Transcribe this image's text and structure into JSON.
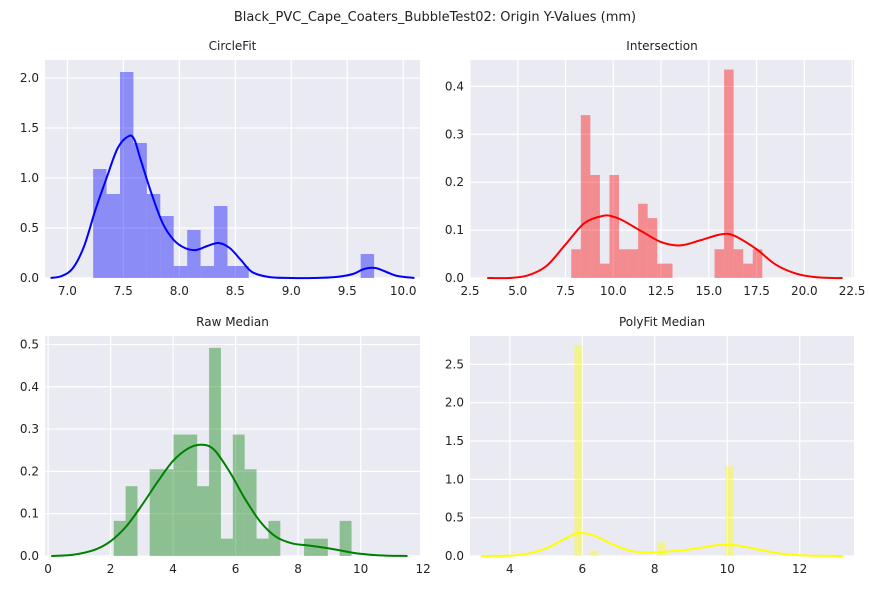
{
  "figure_title": "Black_PVC_Cape_Coaters_BubbleTest02: Origin Y-Values (mm)",
  "chart_data": [
    {
      "type": "histogram",
      "title": "CircleFit",
      "color": "#0000ff",
      "xlim": [
        6.8,
        10.15
      ],
      "ylim": [
        0,
        2.18
      ],
      "xticks": [
        7.0,
        7.5,
        8.0,
        8.5,
        9.0,
        9.5,
        10.0
      ],
      "xtick_labels": [
        "7.0",
        "7.5",
        "8.0",
        "8.5",
        "9.0",
        "9.5",
        "10.0"
      ],
      "yticks": [
        0.0,
        0.5,
        1.0,
        1.5,
        2.0
      ],
      "ytick_labels": [
        "0.0",
        "0.5",
        "1.0",
        "1.5",
        "2.0"
      ],
      "bins": [
        {
          "x0": 7.23,
          "x1": 7.35,
          "y": 1.09
        },
        {
          "x0": 7.35,
          "x1": 7.47,
          "y": 0.84
        },
        {
          "x0": 7.47,
          "x1": 7.59,
          "y": 2.06
        },
        {
          "x0": 7.59,
          "x1": 7.71,
          "y": 1.35
        },
        {
          "x0": 7.71,
          "x1": 7.83,
          "y": 0.84
        },
        {
          "x0": 7.83,
          "x1": 7.95,
          "y": 0.62
        },
        {
          "x0": 7.95,
          "x1": 8.07,
          "y": 0.12
        },
        {
          "x0": 8.07,
          "x1": 8.19,
          "y": 0.48
        },
        {
          "x0": 8.19,
          "x1": 8.31,
          "y": 0.12
        },
        {
          "x0": 8.31,
          "x1": 8.43,
          "y": 0.72
        },
        {
          "x0": 8.43,
          "x1": 8.62,
          "y": 0.12
        },
        {
          "x0": 9.62,
          "x1": 9.74,
          "y": 0.24
        }
      ],
      "kde": {
        "x": [
          6.85,
          6.95,
          7.05,
          7.15,
          7.25,
          7.35,
          7.45,
          7.55,
          7.6,
          7.65,
          7.75,
          7.85,
          7.95,
          8.05,
          8.15,
          8.25,
          8.35,
          8.45,
          8.55,
          8.65,
          8.8,
          9.0,
          9.2,
          9.4,
          9.55,
          9.65,
          9.75,
          9.85,
          9.95,
          10.1
        ],
        "y": [
          0.0,
          0.02,
          0.1,
          0.32,
          0.68,
          1.0,
          1.3,
          1.42,
          1.38,
          1.2,
          0.85,
          0.55,
          0.38,
          0.3,
          0.28,
          0.32,
          0.35,
          0.3,
          0.18,
          0.06,
          0.01,
          0.0,
          0.0,
          0.01,
          0.04,
          0.09,
          0.1,
          0.06,
          0.02,
          0.0
        ]
      }
    },
    {
      "type": "histogram",
      "title": "Intersection",
      "color": "#ff0000",
      "xlim": [
        2.5,
        22.6
      ],
      "ylim": [
        0,
        0.455
      ],
      "xticks": [
        2.5,
        5.0,
        7.5,
        10.0,
        12.5,
        15.0,
        17.5,
        20.0,
        22.5
      ],
      "xtick_labels": [
        "2.5",
        "5.0",
        "7.5",
        "10.0",
        "12.5",
        "15.0",
        "17.5",
        "20.0",
        "22.5"
      ],
      "yticks": [
        0.0,
        0.1,
        0.2,
        0.3,
        0.4
      ],
      "ytick_labels": [
        "0.0",
        "0.1",
        "0.2",
        "0.3",
        "0.4"
      ],
      "bins": [
        {
          "x0": 7.8,
          "x1": 8.3,
          "y": 0.06
        },
        {
          "x0": 8.3,
          "x1": 8.8,
          "y": 0.34
        },
        {
          "x0": 8.8,
          "x1": 9.3,
          "y": 0.215
        },
        {
          "x0": 9.3,
          "x1": 9.8,
          "y": 0.03
        },
        {
          "x0": 9.8,
          "x1": 10.3,
          "y": 0.215
        },
        {
          "x0": 10.3,
          "x1": 10.8,
          "y": 0.06
        },
        {
          "x0": 10.8,
          "x1": 11.3,
          "y": 0.06
        },
        {
          "x0": 11.3,
          "x1": 11.8,
          "y": 0.155
        },
        {
          "x0": 11.8,
          "x1": 12.3,
          "y": 0.125
        },
        {
          "x0": 12.3,
          "x1": 13.1,
          "y": 0.03
        },
        {
          "x0": 15.3,
          "x1": 15.8,
          "y": 0.06
        },
        {
          "x0": 15.8,
          "x1": 16.3,
          "y": 0.435
        },
        {
          "x0": 16.3,
          "x1": 16.8,
          "y": 0.06
        },
        {
          "x0": 16.8,
          "x1": 17.3,
          "y": 0.03
        },
        {
          "x0": 17.3,
          "x1": 17.8,
          "y": 0.06
        }
      ],
      "kde": {
        "x": [
          3.4,
          4.5,
          5.5,
          6.5,
          7.5,
          8.5,
          9.5,
          10.0,
          10.5,
          11.5,
          12.5,
          13.5,
          14.5,
          15.5,
          16.0,
          16.5,
          17.5,
          18.5,
          19.5,
          20.5,
          21.5,
          22.0
        ],
        "y": [
          0.0,
          0.0,
          0.005,
          0.025,
          0.07,
          0.115,
          0.13,
          0.128,
          0.12,
          0.097,
          0.075,
          0.068,
          0.078,
          0.09,
          0.092,
          0.085,
          0.06,
          0.028,
          0.01,
          0.002,
          0.0,
          0.0
        ]
      }
    },
    {
      "type": "histogram",
      "title": "Raw Median",
      "color": "#008000",
      "xlim": [
        -0.1,
        11.9
      ],
      "ylim": [
        0,
        0.52
      ],
      "xticks": [
        0,
        2,
        4,
        6,
        8,
        10,
        12
      ],
      "xtick_labels": [
        "0",
        "2",
        "4",
        "6",
        "8",
        "10",
        "12"
      ],
      "yticks": [
        0.0,
        0.1,
        0.2,
        0.3,
        0.4,
        0.5
      ],
      "ytick_labels": [
        "0.0",
        "0.1",
        "0.2",
        "0.3",
        "0.4",
        "0.5"
      ],
      "bins": [
        {
          "x0": 2.1,
          "x1": 2.48,
          "y": 0.083
        },
        {
          "x0": 2.48,
          "x1": 2.86,
          "y": 0.165
        },
        {
          "x0": 3.25,
          "x1": 3.63,
          "y": 0.205
        },
        {
          "x0": 3.63,
          "x1": 4.01,
          "y": 0.205
        },
        {
          "x0": 4.01,
          "x1": 4.39,
          "y": 0.287
        },
        {
          "x0": 4.39,
          "x1": 4.77,
          "y": 0.287
        },
        {
          "x0": 4.77,
          "x1": 5.15,
          "y": 0.165
        },
        {
          "x0": 5.15,
          "x1": 5.53,
          "y": 0.492
        },
        {
          "x0": 5.53,
          "x1": 5.91,
          "y": 0.041
        },
        {
          "x0": 5.91,
          "x1": 6.29,
          "y": 0.287
        },
        {
          "x0": 6.29,
          "x1": 6.67,
          "y": 0.205
        },
        {
          "x0": 6.67,
          "x1": 7.05,
          "y": 0.041
        },
        {
          "x0": 7.05,
          "x1": 7.43,
          "y": 0.083
        },
        {
          "x0": 8.19,
          "x1": 8.95,
          "y": 0.041
        },
        {
          "x0": 9.33,
          "x1": 9.71,
          "y": 0.083
        }
      ],
      "kde": {
        "x": [
          0.1,
          0.8,
          1.5,
          2.0,
          2.5,
          3.0,
          3.5,
          4.0,
          4.5,
          4.9,
          5.3,
          5.8,
          6.3,
          6.8,
          7.3,
          7.8,
          8.3,
          8.8,
          9.3,
          9.8,
          10.3,
          10.8,
          11.5
        ],
        "y": [
          0.0,
          0.003,
          0.015,
          0.035,
          0.07,
          0.12,
          0.175,
          0.225,
          0.255,
          0.263,
          0.252,
          0.2,
          0.135,
          0.08,
          0.045,
          0.03,
          0.025,
          0.02,
          0.014,
          0.007,
          0.003,
          0.001,
          0.0
        ]
      }
    },
    {
      "type": "histogram",
      "title": "PolyFit Median",
      "color": "#ffff00",
      "xlim": [
        2.9,
        13.5
      ],
      "ylim": [
        0,
        2.87
      ],
      "xticks": [
        4,
        6,
        8,
        10,
        12
      ],
      "xtick_labels": [
        "4",
        "6",
        "8",
        "10",
        "12"
      ],
      "yticks": [
        0.0,
        0.5,
        1.0,
        1.5,
        2.0,
        2.5
      ],
      "ytick_labels": [
        "0.0",
        "0.5",
        "1.0",
        "1.5",
        "2.0",
        "2.5"
      ],
      "bins": [
        {
          "x0": 5.78,
          "x1": 6.0,
          "y": 2.75
        },
        {
          "x0": 6.22,
          "x1": 6.44,
          "y": 0.07
        },
        {
          "x0": 8.08,
          "x1": 8.3,
          "y": 0.18
        },
        {
          "x0": 9.95,
          "x1": 10.17,
          "y": 1.17
        }
      ],
      "kde": {
        "x": [
          3.2,
          4.0,
          4.5,
          5.0,
          5.5,
          5.9,
          6.3,
          6.8,
          7.3,
          7.8,
          8.3,
          8.8,
          9.3,
          9.7,
          10.1,
          10.5,
          11.0,
          11.5,
          12.0,
          12.5,
          13.2
        ],
        "y": [
          0.0,
          0.005,
          0.03,
          0.1,
          0.22,
          0.3,
          0.27,
          0.16,
          0.07,
          0.045,
          0.055,
          0.075,
          0.11,
          0.14,
          0.145,
          0.12,
          0.07,
          0.03,
          0.01,
          0.003,
          0.0
        ]
      }
    }
  ]
}
